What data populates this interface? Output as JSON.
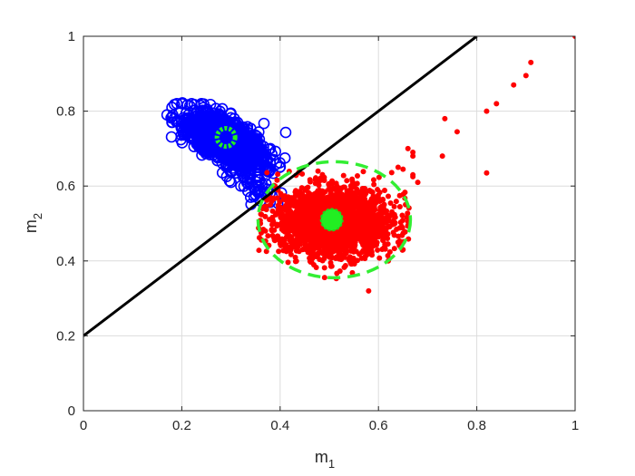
{
  "chart_data": {
    "type": "scatter",
    "title": "",
    "xlabel": "m",
    "xlabel_sub": "1",
    "ylabel": "m",
    "ylabel_sub": "2",
    "xlim": [
      0,
      1
    ],
    "ylim": [
      0,
      1
    ],
    "xticks": [
      0,
      0.2,
      0.4,
      0.6,
      0.8,
      1
    ],
    "yticks": [
      0,
      0.2,
      0.4,
      0.6,
      0.8,
      1
    ],
    "xtick_labels": [
      "0",
      "0.2",
      "0.4",
      "0.6",
      "0.8",
      "1"
    ],
    "ytick_labels": [
      "0",
      "0.2",
      "0.4",
      "0.6",
      "0.8",
      "1"
    ],
    "grid": true,
    "legend": "none",
    "series": [
      {
        "marker": "open-circle",
        "color": "#0000ff",
        "cluster": {
          "center": [
            0.285,
            0.725
          ],
          "points": 1500,
          "sd_major": 0.045,
          "sd_minor": 0.022,
          "orientation": [
            0.62,
            -0.51
          ],
          "tail_toward": [
            0.37,
            0.56
          ]
        },
        "points": [
          [
            0.18,
            0.81
          ],
          [
            0.19,
            0.82
          ],
          [
            0.2,
            0.82
          ],
          [
            0.22,
            0.82
          ],
          [
            0.24,
            0.82
          ],
          [
            0.17,
            0.79
          ],
          [
            0.18,
            0.77
          ],
          [
            0.33,
            0.7
          ],
          [
            0.34,
            0.68
          ],
          [
            0.35,
            0.67
          ],
          [
            0.36,
            0.7
          ],
          [
            0.37,
            0.68
          ],
          [
            0.38,
            0.7
          ],
          [
            0.3,
            0.61
          ],
          [
            0.32,
            0.6
          ],
          [
            0.35,
            0.59
          ],
          [
            0.36,
            0.56
          ],
          [
            0.34,
            0.57
          ]
        ]
      },
      {
        "marker": "filled-dot",
        "color": "#ff0000",
        "cluster": {
          "center": [
            0.51,
            0.505
          ],
          "points": 2200,
          "sd_x": 0.058,
          "sd_y": 0.045
        },
        "points": [
          [
            0.66,
            0.7
          ],
          [
            0.67,
            0.69
          ],
          [
            0.67,
            0.68
          ],
          [
            0.64,
            0.65
          ],
          [
            0.65,
            0.645
          ],
          [
            0.67,
            0.63
          ],
          [
            0.68,
            0.61
          ],
          [
            0.67,
            0.625
          ],
          [
            0.735,
            0.78
          ],
          [
            0.76,
            0.745
          ],
          [
            0.73,
            0.68
          ],
          [
            0.82,
            0.8
          ],
          [
            0.84,
            0.82
          ],
          [
            0.82,
            0.635
          ],
          [
            0.875,
            0.87
          ],
          [
            0.9,
            0.895
          ],
          [
            0.91,
            0.93
          ],
          [
            1.0,
            1.0
          ],
          [
            0.58,
            0.32
          ],
          [
            0.36,
            0.5
          ],
          [
            0.37,
            0.48
          ],
          [
            0.38,
            0.55
          ],
          [
            0.64,
            0.45
          ],
          [
            0.65,
            0.43
          ],
          [
            0.62,
            0.4
          ]
        ]
      }
    ],
    "centroids": [
      {
        "x": 0.29,
        "y": 0.73,
        "color": "#22ee22",
        "marker": "ring"
      },
      {
        "x": 0.505,
        "y": 0.51,
        "color": "#22ee22",
        "marker": "filled"
      }
    ],
    "circle": {
      "cx": 0.51,
      "cy": 0.51,
      "r": 0.155,
      "color": "#33ee33",
      "style": "dashed"
    },
    "line": {
      "x": [
        0,
        0.8
      ],
      "y": [
        0.2,
        1.0
      ],
      "color": "#000000"
    }
  }
}
